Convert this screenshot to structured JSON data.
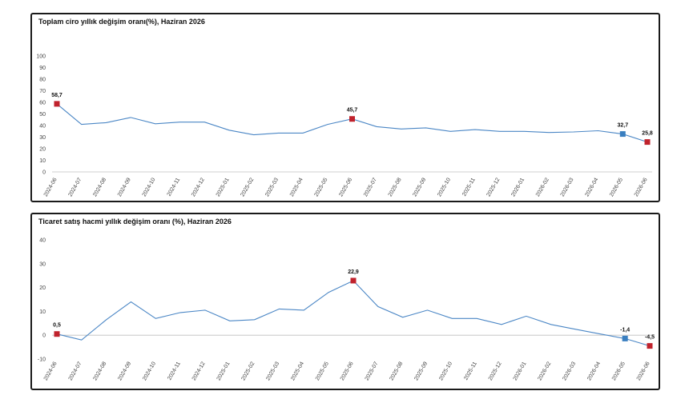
{
  "chart_data": [
    {
      "type": "line",
      "title": "Toplam ciro yıllık değişim oranı(%), Haziran 2026",
      "categories": [
        "2024-06",
        "2024-07",
        "2024-08",
        "2024-09",
        "2024-10",
        "2024-11",
        "2024-12",
        "2025-01",
        "2025-02",
        "2025-03",
        "2025-04",
        "2025-05",
        "2025-06",
        "2025-07",
        "2025-08",
        "2025-09",
        "2025-10",
        "2025-11",
        "2025-12",
        "2026-01",
        "2026-02",
        "2026-03",
        "2026-04",
        "2026-05",
        "2026-06"
      ],
      "values": [
        58.7,
        41,
        42.5,
        47,
        41.5,
        43,
        43,
        36,
        32,
        33.5,
        33.5,
        41,
        45.7,
        39,
        37,
        38,
        35,
        36.5,
        35,
        35,
        34,
        34.5,
        35.5,
        32.7,
        25.8
      ],
      "ylim": [
        0,
        100
      ],
      "yticks": [
        0,
        10,
        20,
        30,
        40,
        50,
        60,
        70,
        80,
        90,
        100
      ],
      "line_color": "#4a86c5",
      "annotations": [
        {
          "index": 0,
          "label": "58,7",
          "color": "#c0222c"
        },
        {
          "index": 12,
          "label": "45,7",
          "color": "#c0222c"
        },
        {
          "index": 23,
          "label": "32,7",
          "color": "#3a7fc0"
        },
        {
          "index": 24,
          "label": "25,8",
          "color": "#c0222c"
        }
      ],
      "grid": false
    },
    {
      "type": "line",
      "title": "Ticaret satış hacmi yıllık değişim oranı (%), Haziran 2026",
      "categories": [
        "2024-06",
        "2024-07",
        "2024-08",
        "2024-09",
        "2024-10",
        "2024-11",
        "2024-12",
        "2025-01",
        "2025-02",
        "2025-03",
        "2025-04",
        "2025-05",
        "2025-06",
        "2025-07",
        "2025-08",
        "2025-09",
        "2025-10",
        "2025-11",
        "2025-12",
        "2026-01",
        "2026-02",
        "2026-03",
        "2026-04",
        "2026-05",
        "2026-06"
      ],
      "values": [
        0.5,
        -2,
        6.5,
        14,
        7,
        9.5,
        10.5,
        6,
        6.5,
        11,
        10.5,
        18,
        22.9,
        12,
        7.5,
        10.5,
        7,
        7,
        4.5,
        8,
        4.5,
        2.5,
        0.5,
        -1.4,
        -4.5
      ],
      "ylim": [
        -10,
        40
      ],
      "yticks": [
        -10,
        0,
        10,
        20,
        30,
        40
      ],
      "line_color": "#4a86c5",
      "annotations": [
        {
          "index": 0,
          "label": "0,5",
          "color": "#c0222c"
        },
        {
          "index": 12,
          "label": "22,9",
          "color": "#c0222c"
        },
        {
          "index": 23,
          "label": "-1,4",
          "color": "#3a7fc0"
        },
        {
          "index": 24,
          "label": "-4,5",
          "color": "#c0222c"
        }
      ],
      "grid": false
    }
  ]
}
